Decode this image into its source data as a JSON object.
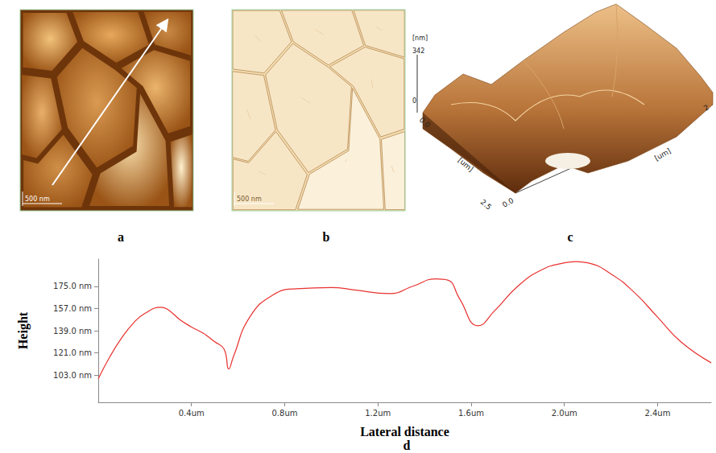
{
  "panels": [
    {
      "label": "a",
      "scale_bar": "500 nm"
    },
    {
      "label": "b",
      "scale_bar": "500 nm"
    },
    {
      "label": "c",
      "z_unit": "[nm]",
      "z_ticks": [
        "342",
        "0"
      ],
      "x_unit": "[um]",
      "x_ticks": [
        "0.0",
        "2.5"
      ],
      "y_unit": "[um]",
      "y_ticks": [
        "0.0",
        "2"
      ]
    },
    {
      "label": "d"
    }
  ],
  "chart_data": {
    "type": "line",
    "x_label": "Lateral distance",
    "y_label": "Height",
    "x": [
      0,
      0.05,
      0.1,
      0.15,
      0.2,
      0.27,
      0.3,
      0.35,
      0.4,
      0.45,
      0.5,
      0.54,
      0.56,
      0.58,
      0.65,
      0.75,
      0.85,
      1.0,
      1.1,
      1.25,
      1.35,
      1.45,
      1.5,
      1.55,
      1.63,
      1.7,
      1.8,
      1.9,
      2.0,
      2.05,
      2.1,
      2.2,
      2.3,
      2.4,
      2.5,
      2.63
    ],
    "values": [
      100,
      118,
      133,
      145,
      153,
      158,
      156,
      148,
      142,
      137,
      130,
      124,
      108,
      118,
      150,
      168,
      173,
      174,
      172,
      169,
      175,
      181,
      180,
      165,
      143,
      155,
      175,
      188,
      194,
      195,
      194,
      185,
      170,
      150,
      130,
      113
    ],
    "color": "#e8312f",
    "xlim": [
      0,
      2.63
    ],
    "ylim": [
      81,
      197
    ],
    "xticks": [
      {
        "value": 0.4,
        "label": "0.4um"
      },
      {
        "value": 0.8,
        "label": "0.8um"
      },
      {
        "value": 1.2,
        "label": "1.2um"
      },
      {
        "value": 1.6,
        "label": "1.6um"
      },
      {
        "value": 2.0,
        "label": "2.0um"
      },
      {
        "value": 2.4,
        "label": "2.4um"
      }
    ],
    "yticks": [
      {
        "value": 103,
        "label": "103.0 nm"
      },
      {
        "value": 121,
        "label": "121.0 nm"
      },
      {
        "value": 139,
        "label": "139.0 nm"
      },
      {
        "value": 157,
        "label": "157.0 nm"
      },
      {
        "value": 175,
        "label": "175.0 nm"
      }
    ],
    "grid": false
  }
}
